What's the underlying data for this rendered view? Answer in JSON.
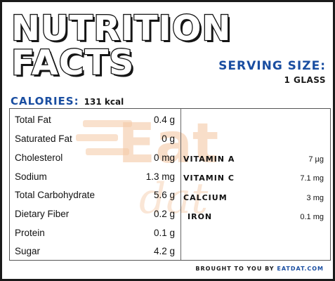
{
  "title": {
    "line1": "NUTRITION",
    "line2": "FACTS"
  },
  "serving": {
    "label": "SERVING SIZE:",
    "value": "1 GLASS"
  },
  "calories": {
    "label": "CALORIES:",
    "value": "131 kcal"
  },
  "nutrients": [
    {
      "name": "Total Fat",
      "value": "0.4 g"
    },
    {
      "name": "Saturated Fat",
      "value": "0 g"
    },
    {
      "name": "Cholesterol",
      "value": "0 mg"
    },
    {
      "name": "Sodium",
      "value": "1.3 mg"
    },
    {
      "name": "Total Carbohydrate",
      "value": "5.6 g"
    },
    {
      "name": "Dietary Fiber",
      "value": "0.2 g"
    },
    {
      "name": "Protein",
      "value": "0.1 g"
    },
    {
      "name": "Sugar",
      "value": "4.2 g"
    }
  ],
  "vitamins": [
    {
      "name": "VITAMIN A",
      "value": "7 µg"
    },
    {
      "name": "VITAMIN C",
      "value": "7.1 mg"
    },
    {
      "name": "CALCIUM",
      "value": "3 mg"
    },
    {
      "name": "IRON",
      "value": "0.1 mg"
    }
  ],
  "credit": {
    "prefix": "BROUGHT TO YOU BY",
    "brand": "EATDAT.COM"
  },
  "watermark": {
    "text_top": "Eat",
    "text_bottom": "dat",
    "color": "#f5c9a6"
  },
  "colors": {
    "accent_blue": "#1a4ea1",
    "text": "#111111",
    "border": "#1a1a1a"
  }
}
